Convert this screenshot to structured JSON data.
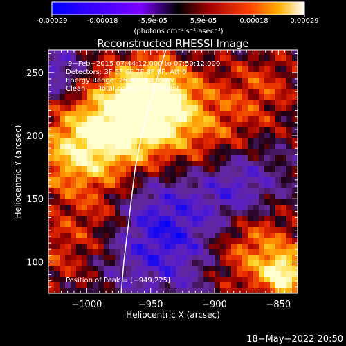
{
  "colorbar": {
    "ticks": [
      "-0.00029",
      "-0.00018",
      "-5.9e-05",
      "5.9e-05",
      "0.00018",
      "0.00029"
    ],
    "units": "(photons cm⁻² s⁻¹ asec⁻²)",
    "range": [
      -0.00029,
      0.00029
    ]
  },
  "chart_data": {
    "type": "heatmap",
    "title": "Reconstructed RHESSI Image",
    "xlabel": "Heliocentric X (arcsec)",
    "ylabel": "Heliocentric Y (arcsec)",
    "xlim": [
      -1030,
      -835
    ],
    "ylim": [
      75,
      268
    ],
    "x_ticks": [
      -1000,
      -950,
      -900,
      -850
    ],
    "y_ticks": [
      100,
      150,
      200,
      250
    ],
    "x_tick_labels": [
      "−1000",
      "−950",
      "−900",
      "−850"
    ],
    "y_tick_labels": [
      "100",
      "150",
      "200",
      "250"
    ],
    "peak": [
      -949,
      225
    ],
    "limb_points": [
      [
        -973,
        75
      ],
      [
        -971,
        100
      ],
      [
        -968,
        125
      ],
      [
        -965,
        150
      ],
      [
        -962,
        175
      ],
      [
        -957,
        200
      ],
      [
        -951,
        225
      ],
      [
        -945,
        245
      ],
      [
        -938,
        268
      ]
    ],
    "annotations": {
      "time": "9−Feb−2015 07:44:12.000 to 07:50:12.000",
      "detectors": "Detectors: 3F 5F 6F 7F 8F 9F, Att 0",
      "energy": "Energy Range: 25.0 − 50.0 keV",
      "clean": "Clean      Total counts: 7.37E+03",
      "peak_label": "Position of Peak = [−949,225]"
    }
  },
  "footer": {
    "timestamp": "18−May−2022 20:50"
  }
}
